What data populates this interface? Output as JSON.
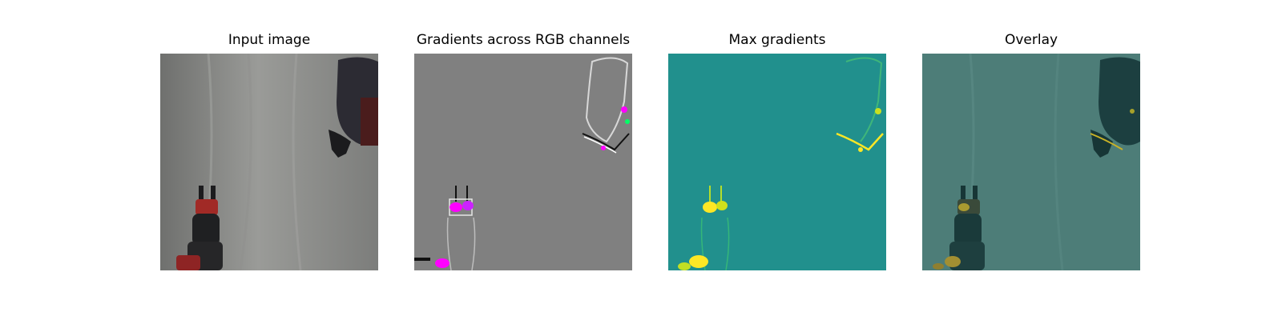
{
  "figure": {
    "panels": [
      {
        "title": "Input image"
      },
      {
        "title": "Gradients across RGB channels"
      },
      {
        "title": "Max gradients"
      },
      {
        "title": "Overlay"
      }
    ]
  },
  "colors": {
    "input_background": "#8a8a88",
    "gradient_background": "#808080",
    "max_gradient_background": "#21908d",
    "overlay_background": "#4d7d78",
    "highlight_yellow": "#fde725",
    "highlight_magenta": "#ff00ff"
  }
}
